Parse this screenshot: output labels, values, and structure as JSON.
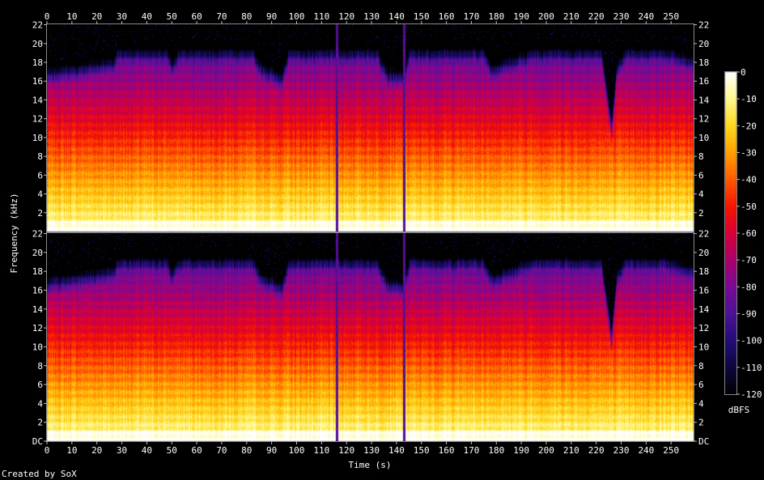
{
  "chart_data": {
    "type": "heatmap",
    "title": "",
    "xlabel": "Time (s)",
    "ylabel": "Frequency (kHz)",
    "x_ticks": [
      "0",
      "10",
      "20",
      "30",
      "40",
      "50",
      "60",
      "70",
      "80",
      "90",
      "100",
      "110",
      "120",
      "130",
      "140",
      "150",
      "160",
      "170",
      "180",
      "190",
      "200",
      "210",
      "220",
      "230",
      "240",
      "250"
    ],
    "x_range_s": [
      0,
      259
    ],
    "y_ticks_upper": [
      "2",
      "4",
      "6",
      "8",
      "10",
      "12",
      "14",
      "16",
      "18",
      "20",
      "22"
    ],
    "y_ticks_lower": [
      "DC",
      "2",
      "4",
      "6",
      "8",
      "10",
      "12",
      "14",
      "16",
      "18",
      "20",
      "22"
    ],
    "y_range_khz": [
      0,
      22.05
    ],
    "channels": 2,
    "colorbar": {
      "label": "dBFS",
      "ticks": [
        "0",
        "-10",
        "-20",
        "-30",
        "-40",
        "-50",
        "-60",
        "-70",
        "-80",
        "-90",
        "-100",
        "-110",
        "-120"
      ],
      "range": [
        -120,
        0
      ]
    },
    "content_cutoff_khz": [
      {
        "t": 0,
        "f": 17.5
      },
      {
        "t": 10,
        "f": 18
      },
      {
        "t": 20,
        "f": 18.5
      },
      {
        "t": 27,
        "f": 19
      },
      {
        "t": 28,
        "f": 20
      },
      {
        "t": 48,
        "f": 20
      },
      {
        "t": 50,
        "f": 18.5
      },
      {
        "t": 53,
        "f": 20
      },
      {
        "t": 82,
        "f": 20
      },
      {
        "t": 86,
        "f": 18
      },
      {
        "t": 94,
        "f": 17
      },
      {
        "t": 97,
        "f": 20
      },
      {
        "t": 114,
        "f": 20
      },
      {
        "t": 116,
        "f": 20
      },
      {
        "t": 132,
        "f": 20
      },
      {
        "t": 136,
        "f": 17.5
      },
      {
        "t": 143,
        "f": 17
      },
      {
        "t": 145,
        "f": 20
      },
      {
        "t": 175,
        "f": 20
      },
      {
        "t": 178,
        "f": 18
      },
      {
        "t": 195,
        "f": 20
      },
      {
        "t": 222,
        "f": 20
      },
      {
        "t": 226,
        "f": 11
      },
      {
        "t": 228,
        "f": 18
      },
      {
        "t": 232,
        "f": 20
      },
      {
        "t": 247,
        "f": 20
      },
      {
        "t": 259,
        "f": 19
      }
    ],
    "dropouts_s": [
      116,
      143
    ]
  },
  "footer": {
    "credit": "Created by SoX"
  }
}
